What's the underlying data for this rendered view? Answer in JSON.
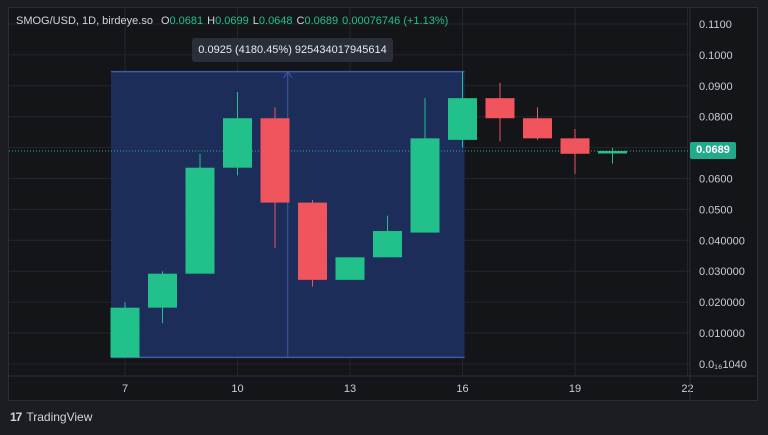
{
  "header": {
    "symbol": "SMOG/USD, 1D, birdeye.so",
    "open_label": "O",
    "open_value": "0.0681",
    "high_label": "H",
    "high_value": "0.0699",
    "low_label": "L",
    "low_value": "0.0648",
    "close_label": "C",
    "close_value": "0.0689",
    "change": "0.00076746 (+1.13%)"
  },
  "measure_tooltip": "0.0925 (4180.45%) 925434017945614",
  "current_price_label": "0.0689",
  "brand": {
    "icon": "17",
    "name": "TradingView"
  },
  "colors": {
    "up": "#22c08a",
    "down": "#f0545c",
    "background": "#141519",
    "measure": "#3d5ba8"
  },
  "chart_data": {
    "type": "candlestick",
    "x_tick_labels": [
      "7",
      "10",
      "13",
      "16",
      "19",
      "22"
    ],
    "y_tick_labels": [
      "0.1100",
      "0.1000",
      "0.0900",
      "0.0800",
      "0.0700",
      "0.0600",
      "0.0500",
      "0.040000",
      "0.030000",
      "0.020000",
      "0.010000",
      "0.0₁₆1040"
    ],
    "ylim": [
      0.0,
      0.11
    ],
    "current_price": 0.0689,
    "measure": {
      "from_day": 7,
      "to_day": 16,
      "low": 0.0021,
      "high": 0.0946
    },
    "candles": [
      {
        "day": 7,
        "open": 0.0021,
        "high": 0.02,
        "low": 0.0021,
        "close": 0.0182
      },
      {
        "day": 8,
        "open": 0.0182,
        "high": 0.03,
        "low": 0.0132,
        "close": 0.0292
      },
      {
        "day": 9,
        "open": 0.0292,
        "high": 0.068,
        "low": 0.0292,
        "close": 0.0635
      },
      {
        "day": 10,
        "open": 0.0635,
        "high": 0.088,
        "low": 0.061,
        "close": 0.0795
      },
      {
        "day": 11,
        "open": 0.0795,
        "high": 0.083,
        "low": 0.0375,
        "close": 0.0522
      },
      {
        "day": 12,
        "open": 0.0522,
        "high": 0.053,
        "low": 0.025,
        "close": 0.0272
      },
      {
        "day": 13,
        "open": 0.0272,
        "high": 0.0345,
        "low": 0.0272,
        "close": 0.0345
      },
      {
        "day": 14,
        "open": 0.0345,
        "high": 0.048,
        "low": 0.0345,
        "close": 0.043
      },
      {
        "day": 15,
        "open": 0.0425,
        "high": 0.086,
        "low": 0.0425,
        "close": 0.073
      },
      {
        "day": 16,
        "open": 0.0725,
        "high": 0.0946,
        "low": 0.07,
        "close": 0.086
      },
      {
        "day": 17,
        "open": 0.086,
        "high": 0.091,
        "low": 0.072,
        "close": 0.0795
      },
      {
        "day": 18,
        "open": 0.0795,
        "high": 0.083,
        "low": 0.0725,
        "close": 0.073
      },
      {
        "day": 19,
        "open": 0.073,
        "high": 0.076,
        "low": 0.0615,
        "close": 0.068
      },
      {
        "day": 20,
        "open": 0.0681,
        "high": 0.0699,
        "low": 0.0648,
        "close": 0.0689
      }
    ]
  }
}
